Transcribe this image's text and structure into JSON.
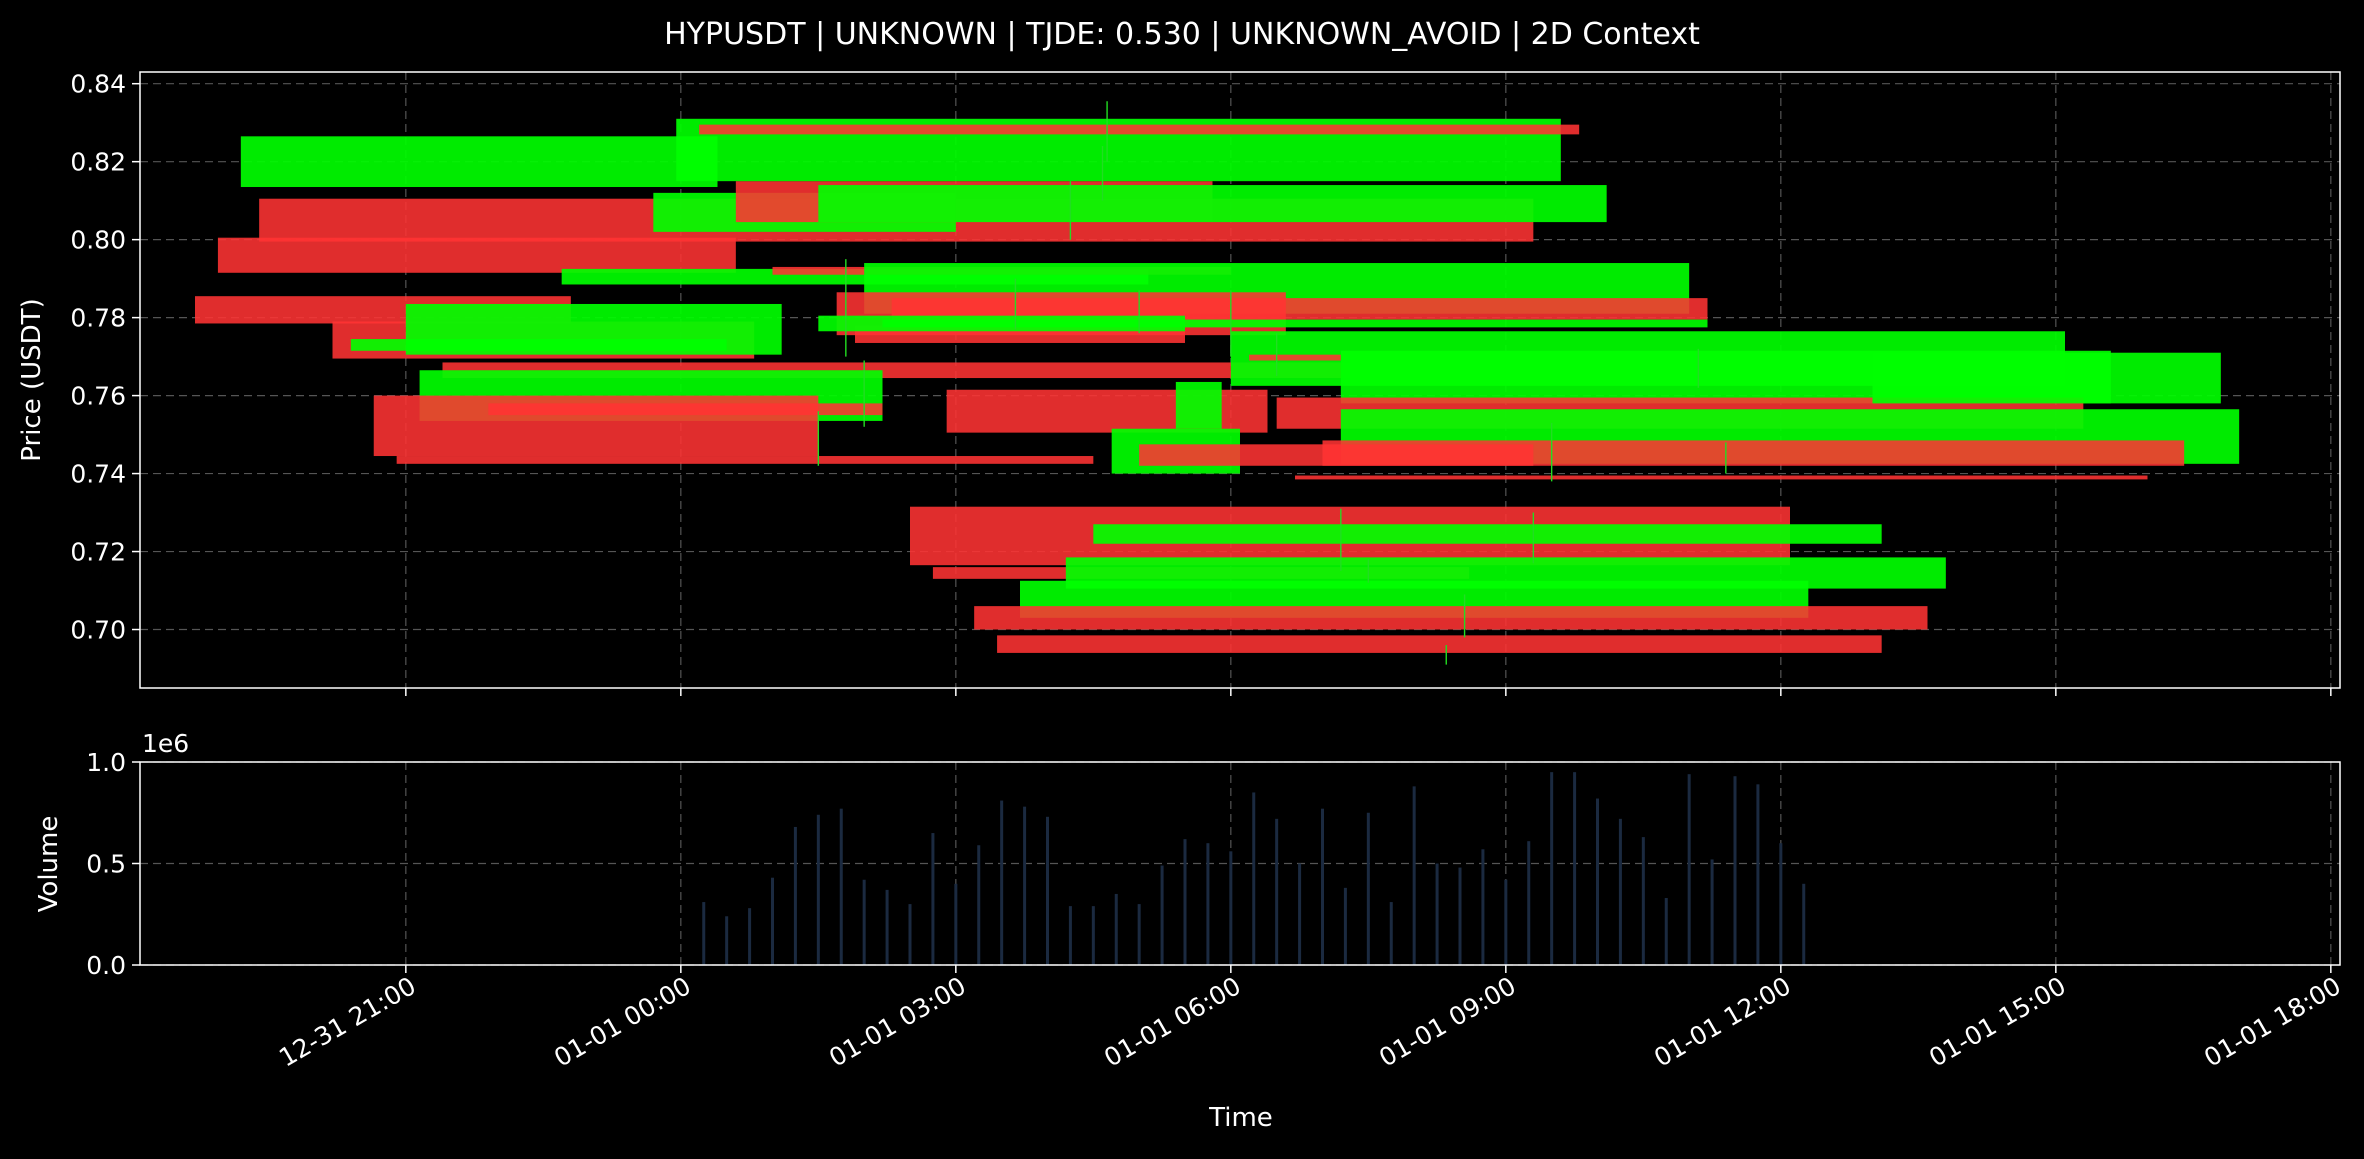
{
  "chart_data": [
    {
      "type": "candlestick",
      "title": "HYPUSDT | UNKNOWN | TJDE: 0.530 | UNKNOWN_AVOID | 2D Context",
      "xlabel": "Time",
      "ylabel": "Price (USDT)",
      "ylim": [
        0.685,
        0.843
      ],
      "yticks": [
        0.7,
        0.72,
        0.74,
        0.76,
        0.78,
        0.8,
        0.82,
        0.84
      ],
      "ytick_labels": [
        "0.70",
        "0.72",
        "0.74",
        "0.76",
        "0.78",
        "0.80",
        "0.82",
        "0.84"
      ],
      "xticks": [
        "12-31 21:00",
        "01-01 00:00",
        "01-01 03:00",
        "01-01 06:00",
        "01-01 09:00",
        "01-01 12:00",
        "01-01 15:00",
        "01-01 18:00"
      ],
      "x_hours": [
        -3,
        0,
        3,
        6,
        9,
        12,
        15,
        18
      ],
      "xlim_hours": [
        -5.9,
        18.1
      ],
      "grid": true,
      "colors": {
        "up": "#00ff00",
        "down": "#ff3333",
        "background": "#000000",
        "axis": "#ffffff",
        "grid": "#555555"
      },
      "candles": [
        {
          "start": -4.8,
          "end": 0.4,
          "open": 0.8135,
          "close": 0.8265
        },
        {
          "start": -4.6,
          "end": 9.3,
          "open": 0.8105,
          "close": 0.7995
        },
        {
          "start": -5.05,
          "end": 0.6,
          "open": 0.8005,
          "close": 0.7915
        },
        {
          "start": -5.3,
          "end": -1.2,
          "open": 0.7855,
          "close": 0.7785
        },
        {
          "start": -3.8,
          "end": 0.8,
          "open": 0.779,
          "close": 0.7695
        },
        {
          "start": -3.0,
          "end": 1.1,
          "open": 0.7705,
          "close": 0.7835
        },
        {
          "start": -3.6,
          "end": 0.5,
          "open": 0.7715,
          "close": 0.7745
        },
        {
          "start": -2.6,
          "end": 7.3,
          "open": 0.7685,
          "close": 0.7645
        },
        {
          "start": -2.85,
          "end": 2.2,
          "open": 0.7535,
          "close": 0.7665
        },
        {
          "start": -3.35,
          "end": 1.5,
          "open": 0.76,
          "close": 0.7445
        },
        {
          "start": -3.1,
          "end": 4.5,
          "open": 0.7445,
          "close": 0.7425
        },
        {
          "start": -1.3,
          "end": 5.1,
          "open": 0.7885,
          "close": 0.7925
        },
        {
          "start": -2.1,
          "end": 2.2,
          "open": 0.758,
          "close": 0.755
        },
        {
          "start": -0.3,
          "end": 3.0,
          "open": 0.802,
          "close": 0.812
        },
        {
          "start": 0.6,
          "end": 5.8,
          "open": 0.815,
          "close": 0.8045
        },
        {
          "start": -0.05,
          "end": 9.6,
          "open": 0.815,
          "close": 0.831
        },
        {
          "start": 0.2,
          "end": 9.8,
          "open": 0.8295,
          "close": 0.827
        },
        {
          "start": 1.5,
          "end": 10.1,
          "open": 0.8045,
          "close": 0.814
        },
        {
          "start": 1.0,
          "end": 6.0,
          "open": 0.793,
          "close": 0.791
        },
        {
          "start": 2.0,
          "end": 11.0,
          "open": 0.781,
          "close": 0.794
        },
        {
          "start": 1.7,
          "end": 6.6,
          "open": 0.7865,
          "close": 0.7755
        },
        {
          "start": 1.9,
          "end": 5.5,
          "open": 0.778,
          "close": 0.7735
        },
        {
          "start": 2.3,
          "end": 11.2,
          "open": 0.785,
          "close": 0.7795
        },
        {
          "start": 1.5,
          "end": 5.5,
          "open": 0.7765,
          "close": 0.7805
        },
        {
          "start": 2.2,
          "end": 11.2,
          "open": 0.7775,
          "close": 0.7795
        },
        {
          "start": 2.9,
          "end": 6.4,
          "open": 0.7615,
          "close": 0.7505
        },
        {
          "start": 5.4,
          "end": 5.9,
          "open": 0.7515,
          "close": 0.7635
        },
        {
          "start": 6.0,
          "end": 15.1,
          "open": 0.7625,
          "close": 0.7765
        },
        {
          "start": 6.2,
          "end": 7.2,
          "open": 0.7705,
          "close": 0.769
        },
        {
          "start": 7.2,
          "end": 15.6,
          "open": 0.758,
          "close": 0.7715
        },
        {
          "start": 6.5,
          "end": 15.3,
          "open": 0.7595,
          "close": 0.7515
        },
        {
          "start": 13.0,
          "end": 16.8,
          "open": 0.758,
          "close": 0.771
        },
        {
          "start": 7.2,
          "end": 17.0,
          "open": 0.7425,
          "close": 0.7565
        },
        {
          "start": 7.0,
          "end": 16.4,
          "open": 0.7485,
          "close": 0.742
        },
        {
          "start": 4.7,
          "end": 6.1,
          "open": 0.74,
          "close": 0.7515
        },
        {
          "start": 5.0,
          "end": 9.3,
          "open": 0.7475,
          "close": 0.742
        },
        {
          "start": 6.7,
          "end": 16.0,
          "open": 0.7395,
          "close": 0.7385
        },
        {
          "start": 2.5,
          "end": 12.1,
          "open": 0.7315,
          "close": 0.7165
        },
        {
          "start": 4.5,
          "end": 13.1,
          "open": 0.722,
          "close": 0.727
        },
        {
          "start": 2.75,
          "end": 8.6,
          "open": 0.716,
          "close": 0.713
        },
        {
          "start": 4.2,
          "end": 13.8,
          "open": 0.7105,
          "close": 0.7185
        },
        {
          "start": 3.7,
          "end": 12.3,
          "open": 0.703,
          "close": 0.7125
        },
        {
          "start": 3.2,
          "end": 13.6,
          "open": 0.706,
          "close": 0.7
        },
        {
          "start": 3.45,
          "end": 13.1,
          "open": 0.6985,
          "close": 0.694
        }
      ],
      "wicks": [
        {
          "x": 4.65,
          "high": 0.8355,
          "low": 0.82
        },
        {
          "x": 4.6,
          "high": 0.824,
          "low": 0.81
        },
        {
          "x": 4.25,
          "high": 0.815,
          "low": 0.8
        },
        {
          "x": 1.8,
          "high": 0.795,
          "low": 0.77
        },
        {
          "x": 3.65,
          "high": 0.79,
          "low": 0.777
        },
        {
          "x": 6.0,
          "high": 0.787,
          "low": 0.77
        },
        {
          "x": 5.0,
          "high": 0.787,
          "low": 0.776
        },
        {
          "x": 6.5,
          "high": 0.776,
          "low": 0.765
        },
        {
          "x": 2.0,
          "high": 0.769,
          "low": 0.752
        },
        {
          "x": 1.5,
          "high": 0.756,
          "low": 0.742
        },
        {
          "x": 9.5,
          "high": 0.753,
          "low": 0.738
        },
        {
          "x": 11.1,
          "high": 0.772,
          "low": 0.762
        },
        {
          "x": 7.2,
          "high": 0.731,
          "low": 0.715
        },
        {
          "x": 9.3,
          "high": 0.73,
          "low": 0.717
        },
        {
          "x": 7.5,
          "high": 0.718,
          "low": 0.712
        },
        {
          "x": 8.55,
          "high": 0.709,
          "low": 0.698
        },
        {
          "x": 8.35,
          "high": 0.696,
          "low": 0.691
        },
        {
          "x": 11.4,
          "high": 0.748,
          "low": 0.74
        }
      ],
      "volume": {
        "ylabel": "Volume",
        "ylim": [
          0,
          1000000
        ],
        "yticks": [
          0,
          500000,
          1000000
        ],
        "ytick_labels": [
          "0.0",
          "0.5",
          "1.0"
        ],
        "offset_label": "1e6",
        "color": "#1b2a40",
        "bars": [
          {
            "x": 0.25,
            "v": 310000
          },
          {
            "x": 0.5,
            "v": 240000
          },
          {
            "x": 0.75,
            "v": 280000
          },
          {
            "x": 1.0,
            "v": 430000
          },
          {
            "x": 1.25,
            "v": 680000
          },
          {
            "x": 1.5,
            "v": 740000
          },
          {
            "x": 1.75,
            "v": 770000
          },
          {
            "x": 2.0,
            "v": 420000
          },
          {
            "x": 2.25,
            "v": 370000
          },
          {
            "x": 2.5,
            "v": 300000
          },
          {
            "x": 2.75,
            "v": 650000
          },
          {
            "x": 3.0,
            "v": 400000
          },
          {
            "x": 3.25,
            "v": 590000
          },
          {
            "x": 3.5,
            "v": 810000
          },
          {
            "x": 3.75,
            "v": 780000
          },
          {
            "x": 4.0,
            "v": 730000
          },
          {
            "x": 4.25,
            "v": 290000
          },
          {
            "x": 4.5,
            "v": 290000
          },
          {
            "x": 4.75,
            "v": 350000
          },
          {
            "x": 5.0,
            "v": 300000
          },
          {
            "x": 5.25,
            "v": 490000
          },
          {
            "x": 5.5,
            "v": 620000
          },
          {
            "x": 5.75,
            "v": 600000
          },
          {
            "x": 6.0,
            "v": 560000
          },
          {
            "x": 6.25,
            "v": 850000
          },
          {
            "x": 6.5,
            "v": 720000
          },
          {
            "x": 6.75,
            "v": 500000
          },
          {
            "x": 7.0,
            "v": 770000
          },
          {
            "x": 7.25,
            "v": 380000
          },
          {
            "x": 7.5,
            "v": 750000
          },
          {
            "x": 7.75,
            "v": 310000
          },
          {
            "x": 8.0,
            "v": 880000
          },
          {
            "x": 8.25,
            "v": 500000
          },
          {
            "x": 8.5,
            "v": 480000
          },
          {
            "x": 8.75,
            "v": 570000
          },
          {
            "x": 9.0,
            "v": 420000
          },
          {
            "x": 9.25,
            "v": 610000
          },
          {
            "x": 9.5,
            "v": 950000
          },
          {
            "x": 9.75,
            "v": 950000
          },
          {
            "x": 10.0,
            "v": 820000
          },
          {
            "x": 10.25,
            "v": 720000
          },
          {
            "x": 10.5,
            "v": 630000
          },
          {
            "x": 10.75,
            "v": 330000
          },
          {
            "x": 11.0,
            "v": 940000
          },
          {
            "x": 11.25,
            "v": 520000
          },
          {
            "x": 11.5,
            "v": 930000
          },
          {
            "x": 11.75,
            "v": 890000
          },
          {
            "x": 12.0,
            "v": 600000
          },
          {
            "x": 12.25,
            "v": 400000
          }
        ]
      }
    }
  ]
}
